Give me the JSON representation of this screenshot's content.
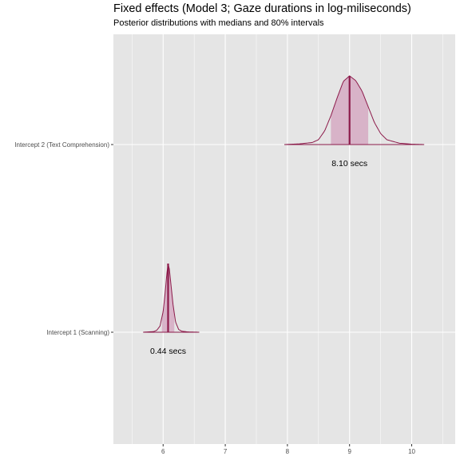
{
  "chart_data": {
    "type": "area",
    "title": "Fixed effects (Model 3; Gaze durations in log-miliseconds)",
    "subtitle": "Posterior distributions with medians and 80% intervals",
    "xlabel": "",
    "ylabel": "",
    "xlim": [
      5.2,
      10.7
    ],
    "x_ticks": [
      6,
      7,
      8,
      9,
      10
    ],
    "grid": true,
    "legend": "none",
    "colors": {
      "fill": "#d8b3c8",
      "line": "#8c1a4a",
      "panel": "#e5e5e5",
      "grid": "#ffffff"
    },
    "series": [
      {
        "name": "Intercept 2 (Text Comprehension)",
        "median": 9.0,
        "interval_80": [
          8.7,
          9.3
        ],
        "range": [
          7.95,
          10.2
        ],
        "annotation": "8.10 secs",
        "density": {
          "x": [
            7.95,
            8.2,
            8.4,
            8.5,
            8.6,
            8.7,
            8.8,
            8.9,
            9.0,
            9.1,
            9.2,
            9.3,
            9.4,
            9.5,
            9.6,
            9.8,
            10.0,
            10.2
          ],
          "y": [
            0.0,
            0.01,
            0.03,
            0.07,
            0.2,
            0.42,
            0.68,
            0.92,
            1.0,
            0.93,
            0.78,
            0.55,
            0.32,
            0.16,
            0.07,
            0.02,
            0.005,
            0.0
          ]
        }
      },
      {
        "name": "Intercept 1 (Scanning)",
        "median": 6.08,
        "interval_80": [
          5.98,
          6.18
        ],
        "range": [
          5.68,
          6.58
        ],
        "annotation": "0.44 secs",
        "density": {
          "x": [
            5.68,
            5.85,
            5.9,
            5.95,
            6.0,
            6.03,
            6.06,
            6.08,
            6.1,
            6.13,
            6.16,
            6.2,
            6.25,
            6.3,
            6.4,
            6.58
          ],
          "y": [
            0.0,
            0.01,
            0.03,
            0.09,
            0.3,
            0.55,
            0.85,
            1.0,
            0.92,
            0.66,
            0.4,
            0.15,
            0.04,
            0.015,
            0.004,
            0.0
          ]
        }
      }
    ]
  }
}
